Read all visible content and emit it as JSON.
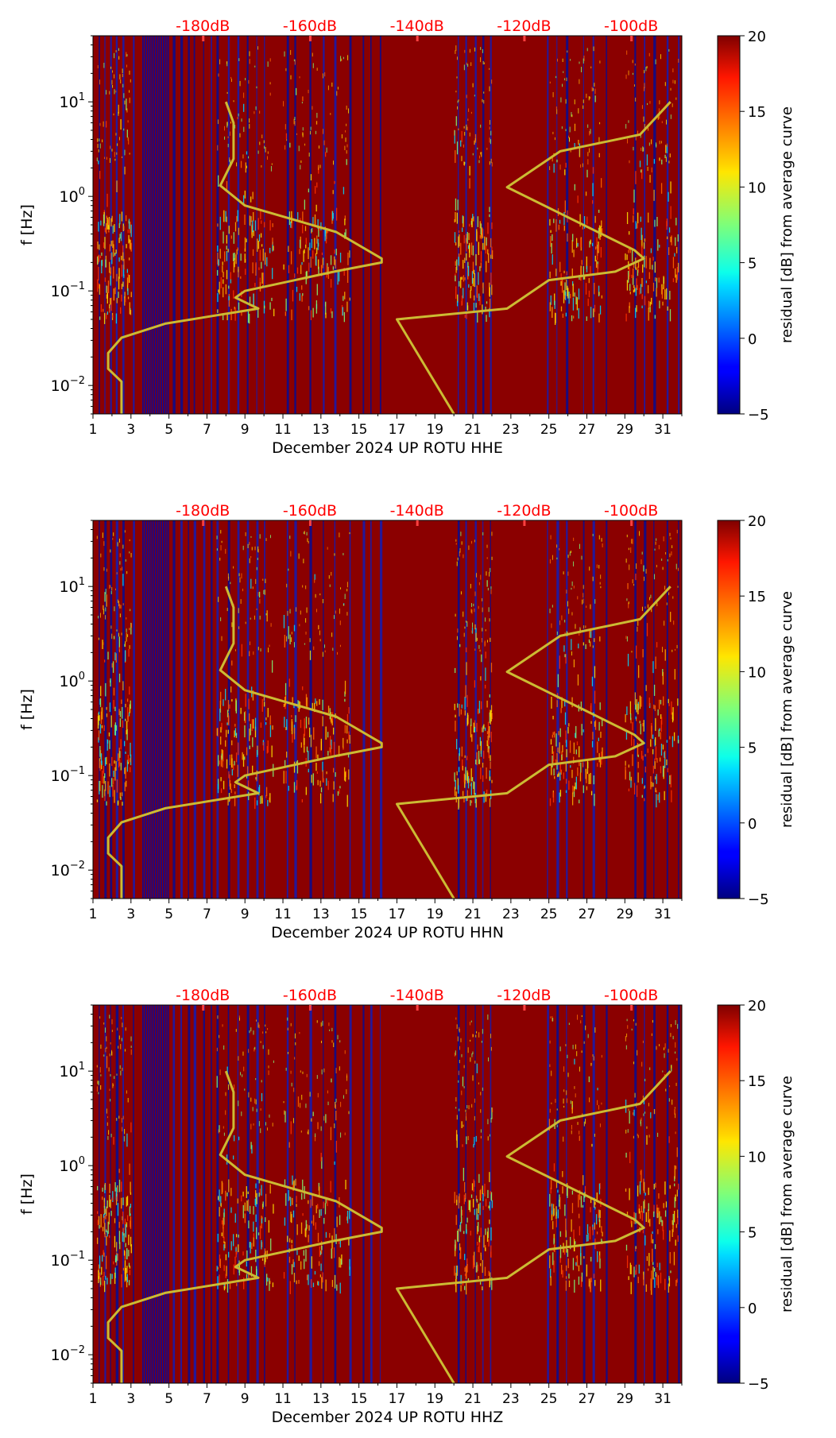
{
  "chart_data": [
    {
      "type": "heatmap",
      "xlabel": "December 2024 UP ROTU  HHE",
      "ylabel": "f [Hz]",
      "x_ticks": [
        "1",
        "3",
        "5",
        "7",
        "9",
        "11",
        "13",
        "15",
        "17",
        "19",
        "21",
        "23",
        "25",
        "27",
        "29",
        "31"
      ],
      "xlim": [
        1,
        32
      ],
      "ylim": [
        0.005,
        50
      ],
      "yscale": "log",
      "y_ticks": [
        {
          "base": "10",
          "exp": "−2"
        },
        {
          "base": "10",
          "exp": "−1"
        },
        {
          "base": "10",
          "exp": "0"
        },
        {
          "base": "10",
          "exp": "1"
        }
      ],
      "colorbar": {
        "label": "residual [dB] from average curve",
        "ticks": [
          "−5",
          "0",
          "5",
          "10",
          "15",
          "20"
        ],
        "range": [
          -5,
          20
        ],
        "colormap": "jet"
      },
      "top_labels": [
        "-180dB",
        "-160dB",
        "-140dB",
        "-120dB",
        "-100dB"
      ],
      "top_label_color": "#ff0000",
      "series": [
        {
          "color": "#ccbb33",
          "segments": [
            [
              [
                8.0,
                10
              ],
              [
                8.4,
                6
              ],
              [
                8.4,
                2.5
              ],
              [
                7.7,
                1.3
              ],
              [
                9.0,
                0.8
              ],
              [
                13.8,
                0.42
              ],
              [
                16.2,
                0.22
              ],
              [
                16.2,
                0.2
              ],
              [
                13.7,
                0.16
              ],
              [
                9.0,
                0.1
              ],
              [
                8.5,
                0.085
              ],
              [
                9.7,
                0.065
              ],
              [
                4.8,
                0.045
              ],
              [
                2.5,
                0.032
              ],
              [
                1.8,
                0.022
              ],
              [
                1.8,
                0.015
              ],
              [
                2.5,
                0.011
              ],
              [
                2.5,
                0.005
              ]
            ],
            [
              [
                31.4,
                10
              ],
              [
                29.8,
                4.5
              ],
              [
                25.6,
                3.0
              ],
              [
                22.8,
                1.25
              ],
              [
                29.5,
                0.27
              ],
              [
                30.0,
                0.22
              ],
              [
                28.5,
                0.16
              ],
              [
                25.0,
                0.13
              ],
              [
                22.8,
                0.065
              ],
              [
                17.0,
                0.05
              ],
              [
                20.0,
                0.005
              ]
            ]
          ]
        }
      ]
    },
    {
      "type": "heatmap",
      "xlabel": "December 2024 UP ROTU  HHN",
      "ylabel": "f [Hz]",
      "x_ticks": [
        "1",
        "3",
        "5",
        "7",
        "9",
        "11",
        "13",
        "15",
        "17",
        "19",
        "21",
        "23",
        "25",
        "27",
        "29",
        "31"
      ],
      "xlim": [
        1,
        32
      ],
      "ylim": [
        0.005,
        50
      ],
      "yscale": "log",
      "y_ticks": [
        {
          "base": "10",
          "exp": "−2"
        },
        {
          "base": "10",
          "exp": "−1"
        },
        {
          "base": "10",
          "exp": "0"
        },
        {
          "base": "10",
          "exp": "1"
        }
      ],
      "colorbar": {
        "label": "residual [dB] from average curve",
        "ticks": [
          "−5",
          "0",
          "5",
          "10",
          "15",
          "20"
        ],
        "range": [
          -5,
          20
        ],
        "colormap": "jet"
      },
      "top_labels": [
        "-180dB",
        "-160dB",
        "-140dB",
        "-120dB",
        "-100dB"
      ],
      "top_label_color": "#ff0000",
      "series": [
        {
          "color": "#ccbb33",
          "segments": [
            [
              [
                8.0,
                10
              ],
              [
                8.4,
                6
              ],
              [
                8.4,
                2.5
              ],
              [
                7.7,
                1.3
              ],
              [
                9.0,
                0.8
              ],
              [
                13.8,
                0.42
              ],
              [
                16.2,
                0.22
              ],
              [
                16.2,
                0.2
              ],
              [
                13.7,
                0.16
              ],
              [
                9.0,
                0.1
              ],
              [
                8.5,
                0.085
              ],
              [
                9.7,
                0.065
              ],
              [
                4.8,
                0.045
              ],
              [
                2.5,
                0.032
              ],
              [
                1.8,
                0.022
              ],
              [
                1.8,
                0.015
              ],
              [
                2.5,
                0.011
              ],
              [
                2.5,
                0.005
              ]
            ],
            [
              [
                31.4,
                10
              ],
              [
                29.8,
                4.5
              ],
              [
                25.6,
                3.0
              ],
              [
                22.8,
                1.25
              ],
              [
                29.5,
                0.27
              ],
              [
                30.0,
                0.22
              ],
              [
                28.5,
                0.16
              ],
              [
                25.0,
                0.13
              ],
              [
                22.8,
                0.065
              ],
              [
                17.0,
                0.05
              ],
              [
                20.0,
                0.005
              ]
            ]
          ]
        }
      ]
    },
    {
      "type": "heatmap",
      "xlabel": "December 2024 UP ROTU  HHZ",
      "ylabel": "f [Hz]",
      "x_ticks": [
        "1",
        "3",
        "5",
        "7",
        "9",
        "11",
        "13",
        "15",
        "17",
        "19",
        "21",
        "23",
        "25",
        "27",
        "29",
        "31"
      ],
      "xlim": [
        1,
        32
      ],
      "ylim": [
        0.005,
        50
      ],
      "yscale": "log",
      "y_ticks": [
        {
          "base": "10",
          "exp": "−2"
        },
        {
          "base": "10",
          "exp": "−1"
        },
        {
          "base": "10",
          "exp": "0"
        },
        {
          "base": "10",
          "exp": "1"
        }
      ],
      "colorbar": {
        "label": "residual [dB] from average curve",
        "ticks": [
          "−5",
          "0",
          "5",
          "10",
          "15",
          "20"
        ],
        "range": [
          -5,
          20
        ],
        "colormap": "jet"
      },
      "top_labels": [
        "-180dB",
        "-160dB",
        "-140dB",
        "-120dB",
        "-100dB"
      ],
      "top_label_color": "#ff0000",
      "series": [
        {
          "color": "#ccbb33",
          "segments": [
            [
              [
                8.0,
                10
              ],
              [
                8.4,
                6
              ],
              [
                8.4,
                2.5
              ],
              [
                7.7,
                1.3
              ],
              [
                9.0,
                0.8
              ],
              [
                13.8,
                0.42
              ],
              [
                16.2,
                0.22
              ],
              [
                16.2,
                0.2
              ],
              [
                13.7,
                0.16
              ],
              [
                9.0,
                0.1
              ],
              [
                8.5,
                0.085
              ],
              [
                9.7,
                0.065
              ],
              [
                4.8,
                0.045
              ],
              [
                2.5,
                0.032
              ],
              [
                1.8,
                0.022
              ],
              [
                1.8,
                0.015
              ],
              [
                2.5,
                0.011
              ],
              [
                2.5,
                0.005
              ]
            ],
            [
              [
                31.4,
                10
              ],
              [
                29.8,
                4.5
              ],
              [
                25.6,
                3.0
              ],
              [
                22.8,
                1.25
              ],
              [
                29.5,
                0.27
              ],
              [
                30.0,
                0.22
              ],
              [
                28.5,
                0.16
              ],
              [
                25.0,
                0.13
              ],
              [
                22.8,
                0.065
              ],
              [
                17.0,
                0.05
              ],
              [
                20.0,
                0.005
              ]
            ]
          ]
        }
      ]
    }
  ]
}
